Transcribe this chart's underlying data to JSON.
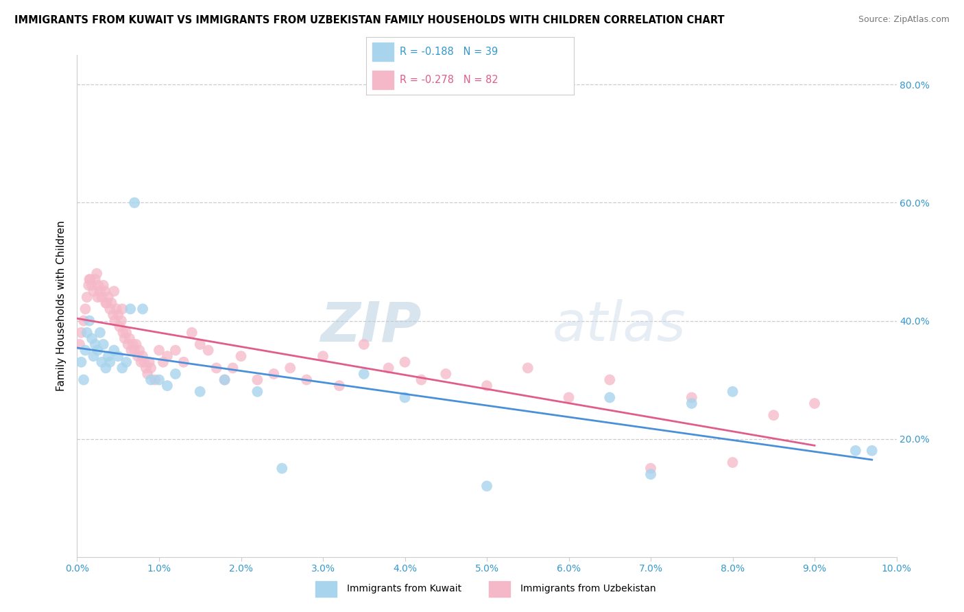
{
  "title": "IMMIGRANTS FROM KUWAIT VS IMMIGRANTS FROM UZBEKISTAN FAMILY HOUSEHOLDS WITH CHILDREN CORRELATION CHART",
  "source": "Source: ZipAtlas.com",
  "ylabel": "Family Households with Children",
  "legend_kuwait": {
    "R": -0.188,
    "N": 39,
    "label": "Immigrants from Kuwait"
  },
  "legend_uzbekistan": {
    "R": -0.278,
    "N": 82,
    "label": "Immigrants from Uzbekistan"
  },
  "color_kuwait": "#A8D4ED",
  "color_uzbekistan": "#F5B8C8",
  "trendline_kuwait": "#4A90D9",
  "trendline_uzbekistan": "#E05C8A",
  "watermark_zip": "ZIP",
  "watermark_atlas": "atlas",
  "xlim": [
    0.0,
    10.0
  ],
  "ylim": [
    0.0,
    85.0
  ],
  "yticks": [
    20.0,
    40.0,
    60.0,
    80.0
  ],
  "kuwait_x": [
    0.05,
    0.08,
    0.1,
    0.12,
    0.15,
    0.18,
    0.2,
    0.22,
    0.25,
    0.28,
    0.3,
    0.32,
    0.35,
    0.38,
    0.4,
    0.45,
    0.5,
    0.55,
    0.6,
    0.65,
    0.7,
    0.8,
    0.9,
    1.0,
    1.1,
    1.2,
    1.5,
    1.8,
    2.2,
    2.5,
    3.5,
    4.0,
    5.0,
    6.5,
    7.0,
    7.5,
    8.0,
    9.5,
    9.7
  ],
  "kuwait_y": [
    33,
    30,
    35,
    38,
    40,
    37,
    34,
    36,
    35,
    38,
    33,
    36,
    32,
    34,
    33,
    35,
    34,
    32,
    33,
    42,
    60,
    42,
    30,
    30,
    29,
    31,
    28,
    30,
    28,
    15,
    31,
    27,
    12,
    27,
    14,
    26,
    28,
    18,
    18
  ],
  "uzbekistan_x": [
    0.03,
    0.05,
    0.08,
    0.1,
    0.12,
    0.14,
    0.16,
    0.18,
    0.2,
    0.22,
    0.24,
    0.26,
    0.28,
    0.3,
    0.32,
    0.34,
    0.36,
    0.38,
    0.4,
    0.42,
    0.44,
    0.46,
    0.48,
    0.5,
    0.52,
    0.54,
    0.56,
    0.58,
    0.6,
    0.62,
    0.64,
    0.66,
    0.68,
    0.7,
    0.72,
    0.74,
    0.76,
    0.78,
    0.8,
    0.82,
    0.84,
    0.86,
    0.88,
    0.9,
    0.95,
    1.0,
    1.05,
    1.1,
    1.2,
    1.3,
    1.4,
    1.5,
    1.6,
    1.7,
    1.8,
    1.9,
    2.0,
    2.2,
    2.4,
    2.6,
    2.8,
    3.0,
    3.2,
    3.5,
    3.8,
    4.0,
    4.2,
    4.5,
    5.0,
    5.5,
    6.0,
    6.5,
    7.0,
    7.5,
    8.0,
    8.5,
    9.0,
    0.15,
    0.25,
    0.35,
    0.45,
    0.55
  ],
  "uzbekistan_y": [
    36,
    38,
    40,
    42,
    44,
    46,
    47,
    46,
    45,
    47,
    48,
    46,
    45,
    44,
    46,
    45,
    43,
    44,
    42,
    43,
    41,
    40,
    42,
    41,
    39,
    40,
    38,
    37,
    38,
    36,
    37,
    35,
    36,
    35,
    36,
    34,
    35,
    33,
    34,
    33,
    32,
    31,
    33,
    32,
    30,
    35,
    33,
    34,
    35,
    33,
    38,
    36,
    35,
    32,
    30,
    32,
    34,
    30,
    31,
    32,
    30,
    34,
    29,
    36,
    32,
    33,
    30,
    31,
    29,
    32,
    27,
    30,
    15,
    27,
    16,
    24,
    26,
    47,
    44,
    43,
    45,
    42
  ]
}
